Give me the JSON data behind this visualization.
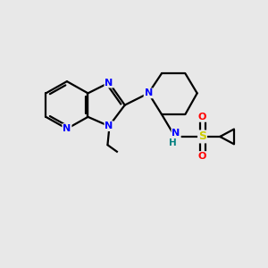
{
  "background_color": "#e8e8e8",
  "bond_color": "#000000",
  "nitrogen_color": "#0000ff",
  "sulfur_color": "#cccc00",
  "oxygen_color": "#ff0000",
  "hydrogen_color": "#008080",
  "line_width": 1.6,
  "fig_size": [
    3.0,
    3.0
  ],
  "dpi": 100,
  "xlim": [
    0,
    10
  ],
  "ylim": [
    0,
    10
  ]
}
